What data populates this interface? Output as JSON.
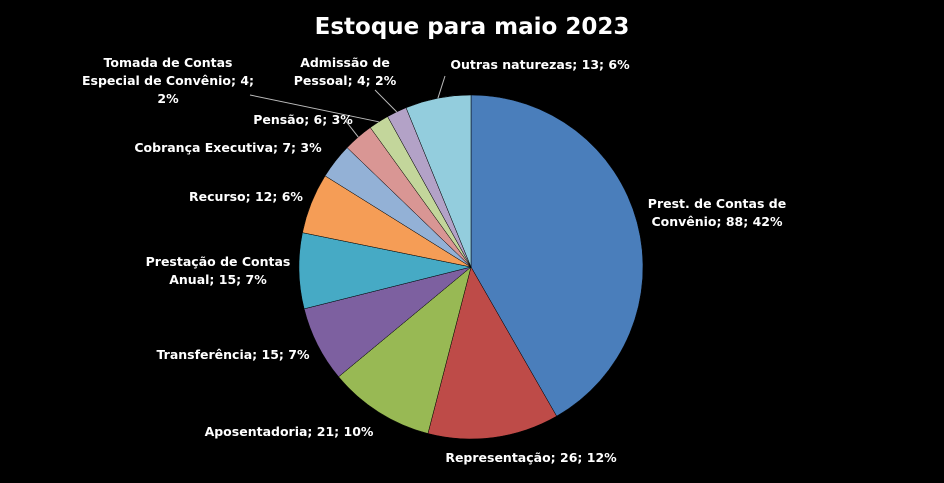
{
  "chart_data": {
    "type": "pie",
    "title": "Estoque para maio 2023",
    "values": [
      88,
      26,
      21,
      15,
      15,
      12,
      7,
      6,
      4,
      4,
      13
    ],
    "value_labels": [
      "Prest. de Contas de Convênio; 88; 42%",
      "Representação; 26; 12%",
      "Aposentadoria; 21; 10%",
      "Transferência; 15; 7%",
      "Prestação de Contas Anual; 15; 7%",
      "Recurso; 12; 6%",
      "Cobrança Executiva; 7; 3%",
      "Pensão; 6; 3%",
      "Tomada de Contas Especial de Convênio; 4; 2%",
      "Admissão de Pessoal; 4; 2%",
      "Outras naturezas; 13; 6%"
    ],
    "colors": [
      "#4a7ebb",
      "#be4b48",
      "#98b954",
      "#7d60a0",
      "#46aac5",
      "#f59d56",
      "#93b1d6",
      "#d99694",
      "#c3d69b",
      "#b3a2c7",
      "#93cddd"
    ]
  }
}
